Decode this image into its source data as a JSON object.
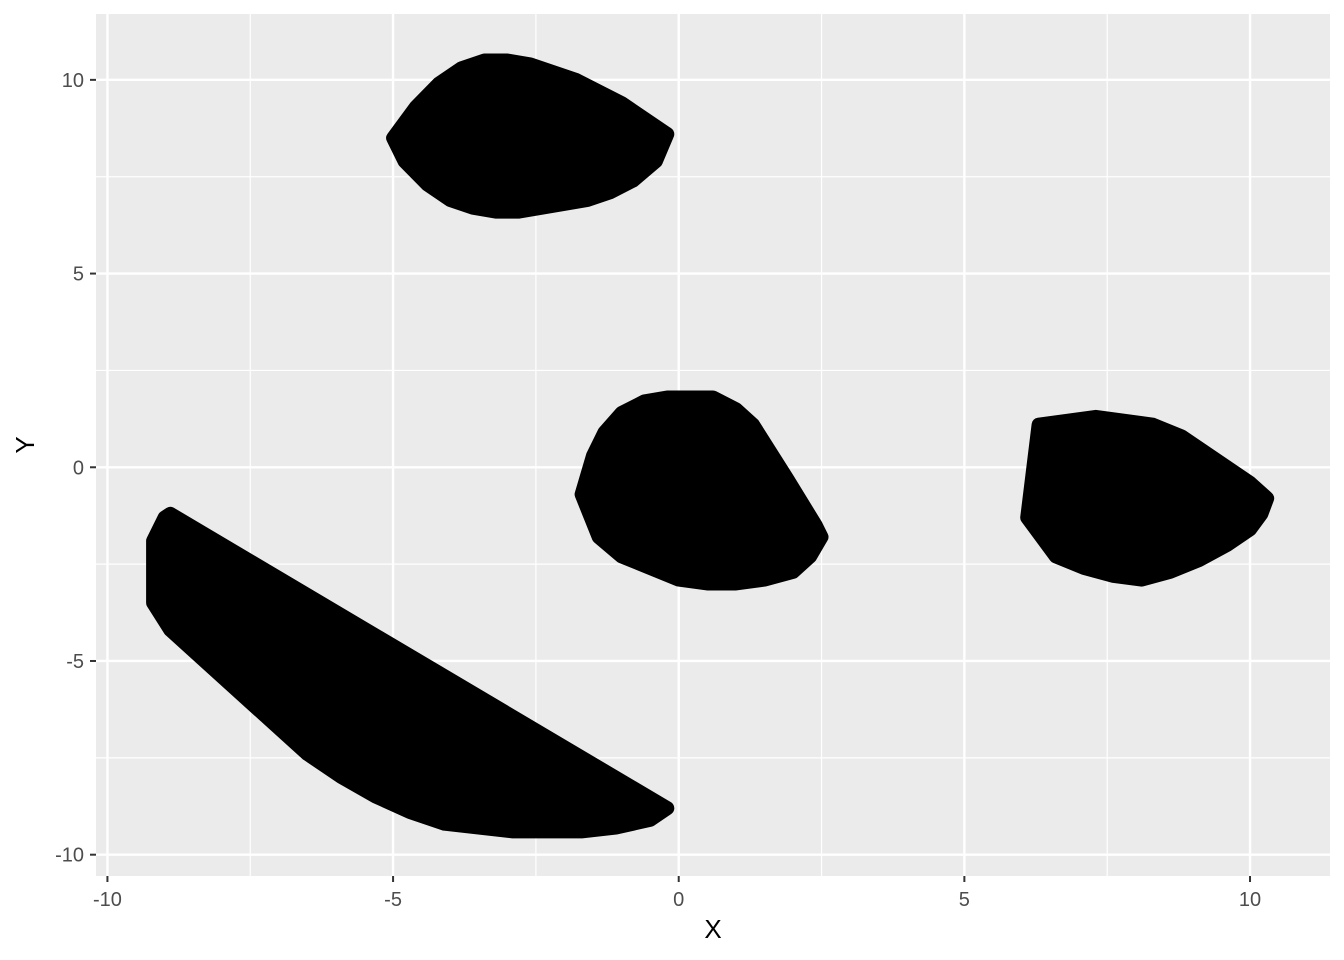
{
  "chart_data": {
    "type": "scatter",
    "title": "",
    "xlabel": "X",
    "ylabel": "Y",
    "xlim": [
      -10.2,
      11.4
    ],
    "ylim": [
      -10.55,
      11.7
    ],
    "x_ticks": [
      -10,
      -5,
      0,
      5,
      10
    ],
    "x_tick_labels": [
      "-10",
      "-5",
      "0",
      "5",
      "10"
    ],
    "y_ticks": [
      -10,
      -5,
      0,
      5,
      10
    ],
    "y_tick_labels": [
      "-10",
      "-5",
      "0",
      "5",
      "10"
    ],
    "grid": true,
    "panel_background": "#ebebeb",
    "grid_color": "#ffffff",
    "point_color": "#000000",
    "series": [
      {
        "cluster": 1,
        "description_center": [
          -3.0,
          8.5
        ],
        "x": [
          -5.0,
          -4.6,
          -4.2,
          -3.8,
          -3.4,
          -3.0,
          -2.6,
          -2.2,
          -1.8,
          -1.4,
          -1.0,
          -0.6,
          -0.2,
          -4.8,
          -4.4,
          -4.0,
          -3.6,
          -3.2,
          -2.8,
          -2.4,
          -2.0,
          -1.6,
          -1.2,
          -0.8,
          -0.4,
          -4.2,
          -3.5,
          -2.8,
          -2.1,
          -1.4,
          -0.7,
          -4.5,
          -3.0,
          -1.5
        ],
        "y": [
          8.5,
          9.3,
          9.9,
          10.3,
          10.5,
          10.5,
          10.4,
          10.2,
          10.0,
          9.7,
          9.4,
          9.0,
          8.6,
          7.9,
          7.3,
          6.9,
          6.7,
          6.6,
          6.6,
          6.7,
          6.8,
          6.9,
          7.1,
          7.4,
          7.9,
          8.5,
          8.6,
          8.5,
          8.4,
          8.3,
          8.4,
          8.2,
          9.2,
          7.5
        ]
      },
      {
        "cluster": 2,
        "description_center": [
          0.4,
          -0.8
        ],
        "x": [
          -1.7,
          -1.5,
          -1.3,
          -1.0,
          -0.6,
          -0.2,
          0.2,
          0.6,
          1.0,
          1.3,
          1.6,
          1.9,
          2.1,
          2.4,
          2.5,
          2.3,
          2.0,
          1.5,
          1.0,
          0.5,
          0.0,
          -0.5,
          -1.0,
          -1.4,
          -0.5,
          0.3,
          1.0,
          1.8,
          -0.8,
          0.8
        ],
        "y": [
          -0.7,
          0.3,
          0.9,
          1.4,
          1.7,
          1.8,
          1.8,
          1.8,
          1.5,
          1.1,
          0.4,
          -0.3,
          -1.0,
          -1.5,
          -1.8,
          -2.3,
          -2.7,
          -2.9,
          -3.0,
          -3.0,
          -2.9,
          -2.6,
          -2.3,
          -1.8,
          -0.5,
          -0.8,
          -1.0,
          -1.2,
          0.3,
          0.5
        ]
      },
      {
        "cluster": 3,
        "description_center": [
          8.2,
          -1.0
        ],
        "x": [
          6.1,
          6.3,
          6.4,
          6.8,
          7.3,
          7.8,
          8.3,
          8.8,
          9.2,
          9.6,
          10.0,
          10.3,
          10.2,
          10.0,
          9.6,
          9.1,
          8.6,
          8.1,
          7.6,
          7.1,
          6.6,
          6.4,
          7.0,
          7.8,
          8.6,
          9.4,
          7.4,
          8.8
        ],
        "y": [
          -1.3,
          1.1,
          -0.2,
          1.2,
          1.3,
          1.2,
          1.1,
          0.8,
          0.4,
          0.0,
          -0.4,
          -0.8,
          -1.2,
          -1.6,
          -2.0,
          -2.4,
          -2.7,
          -2.9,
          -2.8,
          -2.6,
          -2.3,
          -1.5,
          -0.6,
          -0.9,
          -1.2,
          -1.0,
          -1.8,
          0.2
        ]
      },
      {
        "cluster": 4,
        "description_center": [
          -5.5,
          -5.5
        ],
        "x": [
          -9.2,
          -9.0,
          -8.9,
          -8.6,
          -8.2,
          -7.8,
          -7.4,
          -7.0,
          -6.6,
          -6.2,
          -5.8,
          -5.4,
          -5.0,
          -4.6,
          -4.2,
          -3.8,
          -3.4,
          -3.0,
          -2.6,
          -2.2,
          -1.8,
          -1.4,
          -1.0,
          -0.6,
          -0.2,
          -0.5,
          -1.1,
          -1.7,
          -2.3,
          -2.9,
          -3.5,
          -4.1,
          -4.7,
          -5.3,
          -5.9,
          -6.5,
          -7.1,
          -7.7,
          -8.3,
          -8.9,
          -9.2,
          -7.5,
          -6.0,
          -4.5,
          -3.0
        ],
        "y": [
          -1.9,
          -1.3,
          -1.2,
          -1.8,
          -2.3,
          -2.8,
          -3.4,
          -4.0,
          -4.5,
          -4.7,
          -4.9,
          -5.1,
          -5.4,
          -5.6,
          -5.9,
          -6.3,
          -6.7,
          -7.1,
          -7.5,
          -7.9,
          -8.2,
          -8.4,
          -8.6,
          -8.8,
          -8.8,
          -9.1,
          -9.3,
          -9.4,
          -9.4,
          -9.4,
          -9.3,
          -9.2,
          -8.9,
          -8.5,
          -8.0,
          -7.4,
          -6.6,
          -5.8,
          -5.0,
          -4.2,
          -3.5,
          -4.5,
          -6.3,
          -7.8,
          -8.8
        ]
      }
    ]
  }
}
